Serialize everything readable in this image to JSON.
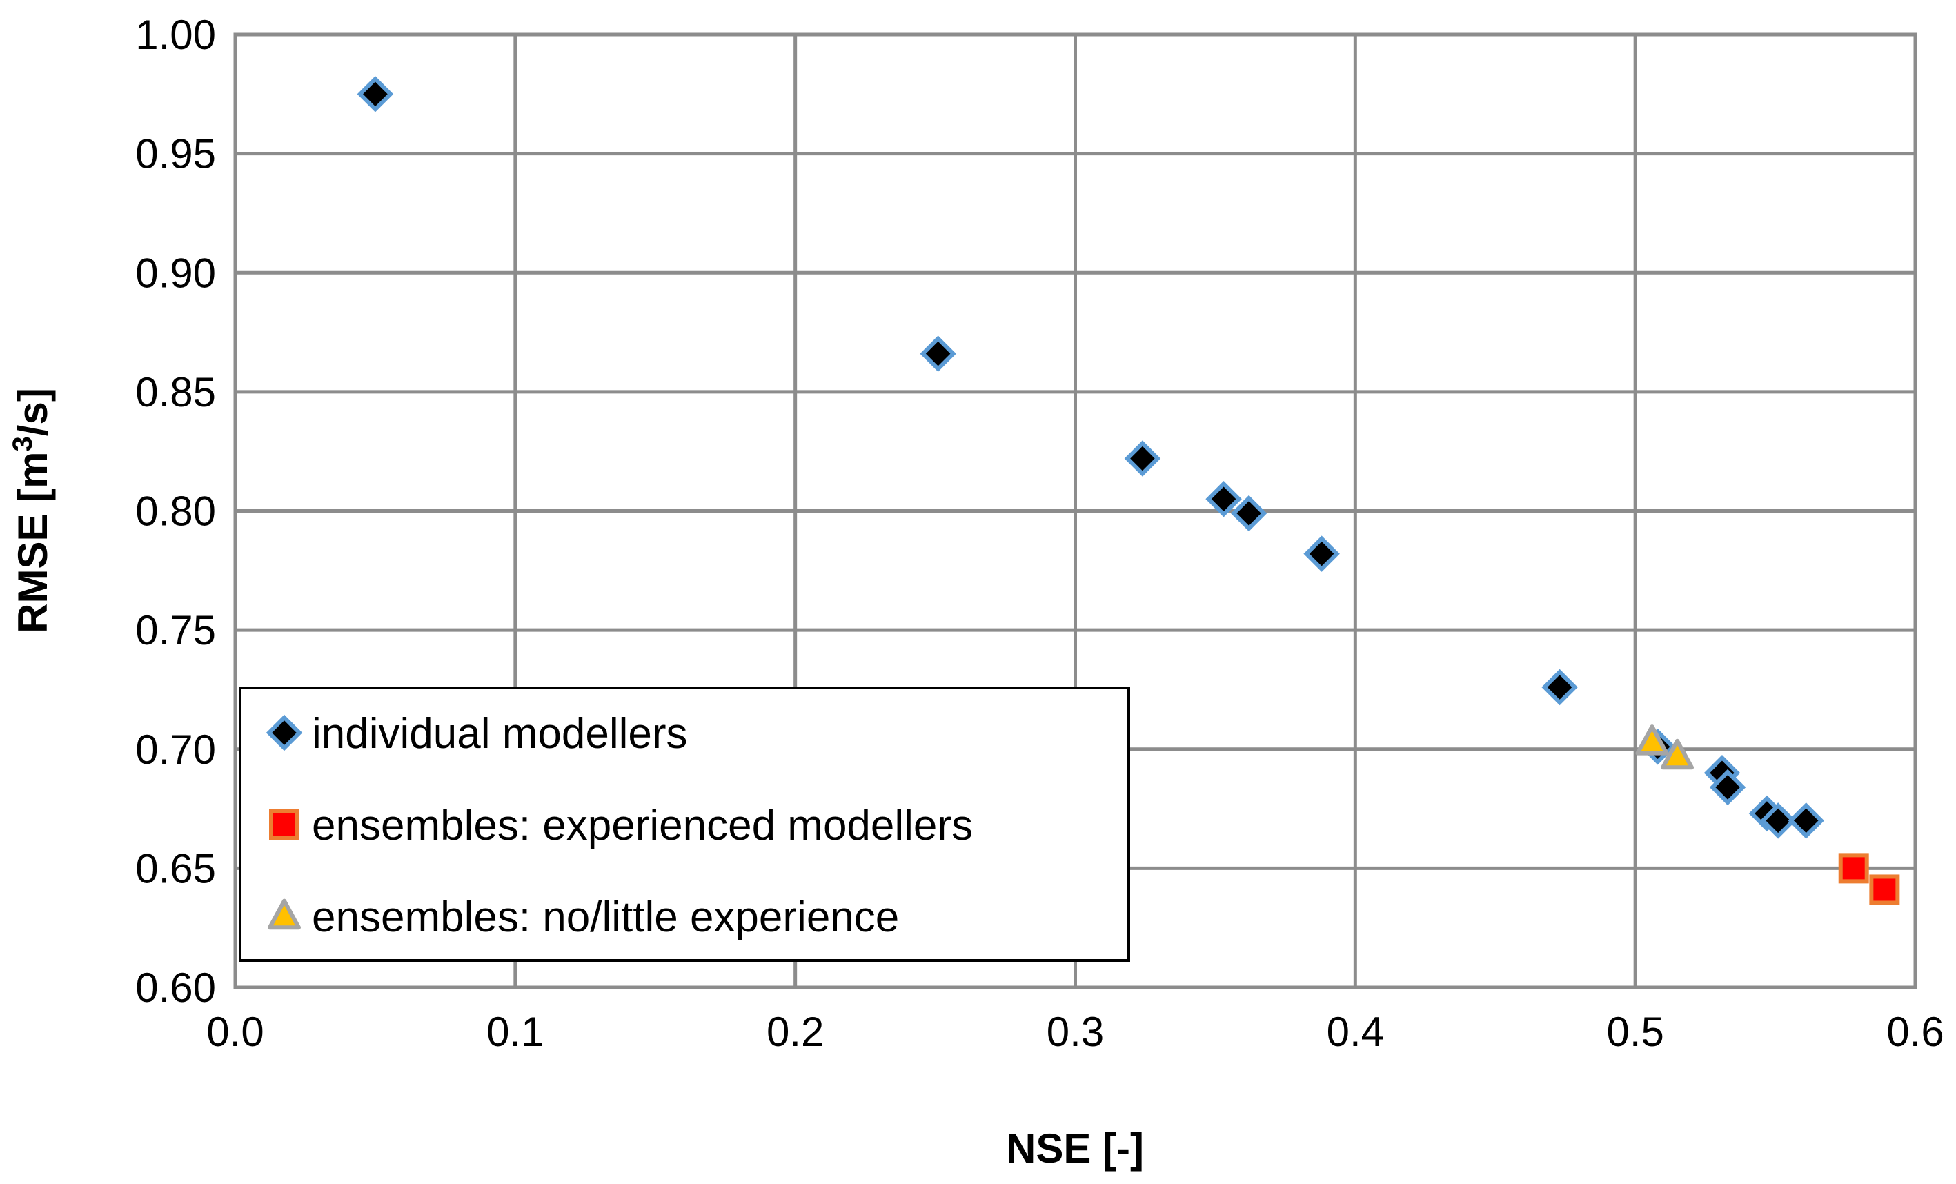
{
  "chart_data": {
    "type": "scatter",
    "title": "",
    "xlabel": "NSE [-]",
    "ylabel_main": "RMSE [m",
    "ylabel_sup": "3",
    "ylabel_tail": "/s]",
    "xlim": [
      0.0,
      0.6
    ],
    "ylim": [
      0.6,
      1.0
    ],
    "x_ticks": [
      0.0,
      0.1,
      0.2,
      0.3,
      0.4,
      0.5,
      0.6
    ],
    "x_tick_labels": [
      "0.0",
      "0.1",
      "0.2",
      "0.3",
      "0.4",
      "0.5",
      "0.6"
    ],
    "y_ticks": [
      0.6,
      0.65,
      0.7,
      0.75,
      0.8,
      0.85,
      0.9,
      0.95,
      1.0
    ],
    "y_tick_labels": [
      "0.60",
      "0.65",
      "0.70",
      "0.75",
      "0.80",
      "0.85",
      "0.90",
      "0.95",
      "1.00"
    ],
    "grid": true,
    "legend_position": "bottom-left",
    "series": [
      {
        "name": "individual modellers",
        "marker": "diamond",
        "fill": "#000000",
        "edge": "#5b9bd5",
        "points": [
          {
            "x": 0.05,
            "y": 0.975
          },
          {
            "x": 0.251,
            "y": 0.866
          },
          {
            "x": 0.324,
            "y": 0.822
          },
          {
            "x": 0.353,
            "y": 0.805
          },
          {
            "x": 0.362,
            "y": 0.799
          },
          {
            "x": 0.388,
            "y": 0.782
          },
          {
            "x": 0.473,
            "y": 0.726
          },
          {
            "x": 0.508,
            "y": 0.701
          },
          {
            "x": 0.531,
            "y": 0.69
          },
          {
            "x": 0.533,
            "y": 0.684
          },
          {
            "x": 0.547,
            "y": 0.673
          },
          {
            "x": 0.551,
            "y": 0.67
          },
          {
            "x": 0.561,
            "y": 0.67
          }
        ]
      },
      {
        "name": "ensembles: experienced modellers",
        "marker": "square",
        "fill": "#ff0000",
        "edge": "#ed7d31",
        "points": [
          {
            "x": 0.578,
            "y": 0.65
          },
          {
            "x": 0.589,
            "y": 0.641
          }
        ]
      },
      {
        "name": "ensembles: no/little experience",
        "marker": "triangle",
        "fill": "#ffc000",
        "edge": "#a5a5a5",
        "points": [
          {
            "x": 0.506,
            "y": 0.703
          },
          {
            "x": 0.515,
            "y": 0.697
          }
        ]
      }
    ]
  }
}
